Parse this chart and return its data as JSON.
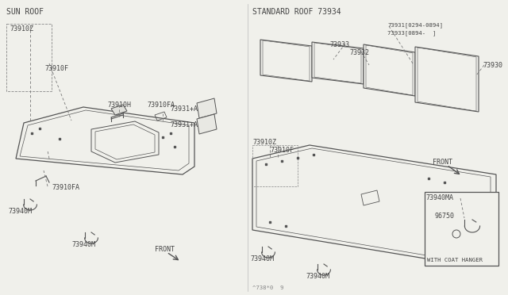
{
  "bg_color": "#f0f0eb",
  "line_color": "#555555",
  "text_color": "#444444",
  "font_size": 6.0,
  "small_font": 5.2,
  "title_font": 7.0,
  "left_title": "SUN ROOF",
  "right_title": "STANDARD ROOF 73934",
  "label_73931_top1": "73931[0294-0894]",
  "label_73931_top2": "73933[0894-  ]",
  "watermark": "^738*0  9"
}
